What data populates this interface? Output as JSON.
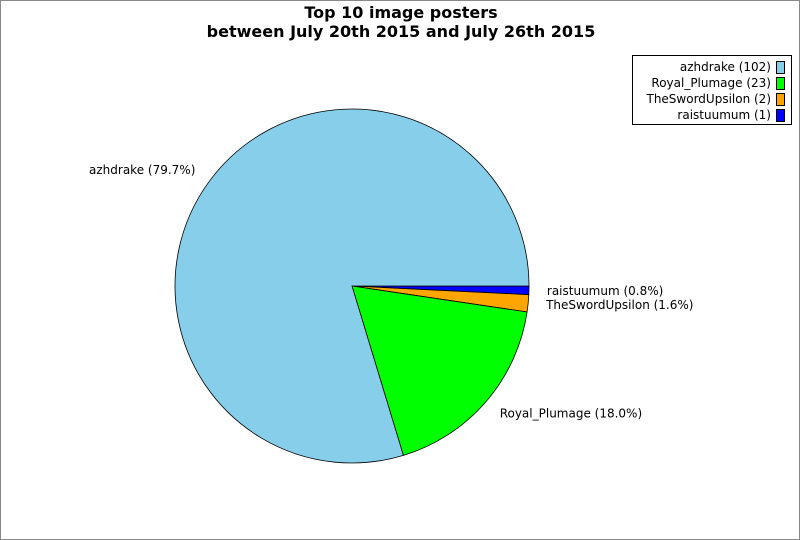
{
  "chart_data": {
    "type": "pie",
    "title_line1": "Top 10 image posters",
    "title_line2": "between July 20th 2015 and July 26th 2015",
    "legend_position": "top-right",
    "slices": [
      {
        "name": "azhdrake",
        "count": 102,
        "percent": 79.7,
        "color": "#87ceeb",
        "legend": "azhdrake (102)",
        "label": "azhdrake (79.7%)"
      },
      {
        "name": "Royal_Plumage",
        "count": 23,
        "percent": 18.0,
        "color": "#00ff00",
        "legend": "Royal_Plumage (23)",
        "label": "Royal_Plumage (18.0%)"
      },
      {
        "name": "TheSwordUpsilon",
        "count": 2,
        "percent": 1.6,
        "color": "#ffa500",
        "legend": "TheSwordUpsilon (2)",
        "label": "TheSwordUpsilon (1.6%)"
      },
      {
        "name": "raistuumum",
        "count": 1,
        "percent": 0.8,
        "color": "#0000ff",
        "legend": "raistuumum (1)",
        "label": "raistuumum (0.8%)"
      }
    ]
  }
}
